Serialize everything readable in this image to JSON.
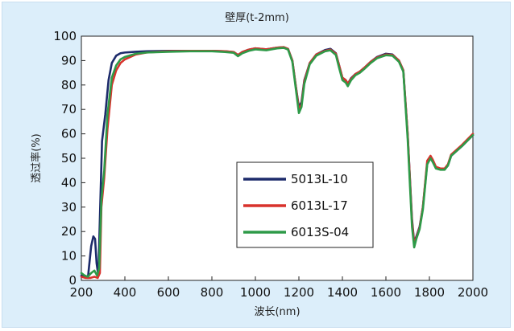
{
  "chart_data": {
    "type": "line",
    "title": "壁厚(t-2mm)",
    "xlabel": "波长(nm)",
    "ylabel": "透过率(%)",
    "xlim": [
      200,
      2000
    ],
    "ylim": [
      0,
      100
    ],
    "xticks": [
      200,
      400,
      600,
      800,
      1000,
      1200,
      1400,
      1600,
      1800,
      2000
    ],
    "yticks": [
      0,
      10,
      20,
      30,
      40,
      50,
      60,
      70,
      80,
      90,
      100
    ],
    "grid": false,
    "legend": "center",
    "series": [
      {
        "name": "5013L-10",
        "color": "#1d2b6b",
        "points": [
          [
            200,
            2
          ],
          [
            215,
            1.5
          ],
          [
            230,
            1
          ],
          [
            245,
            14
          ],
          [
            255,
            18
          ],
          [
            263,
            17
          ],
          [
            270,
            7
          ],
          [
            278,
            2
          ],
          [
            285,
            25
          ],
          [
            295,
            57
          ],
          [
            310,
            68
          ],
          [
            325,
            82
          ],
          [
            340,
            89
          ],
          [
            360,
            92
          ],
          [
            380,
            93
          ],
          [
            400,
            93.3
          ],
          [
            450,
            93.6
          ],
          [
            500,
            93.8
          ],
          [
            600,
            94
          ],
          [
            700,
            94
          ],
          [
            800,
            94
          ],
          [
            860,
            93.8
          ],
          [
            900,
            93.5
          ],
          [
            920,
            92.3
          ],
          [
            940,
            93.5
          ],
          [
            970,
            94.5
          ],
          [
            1000,
            95
          ],
          [
            1050,
            94.6
          ],
          [
            1100,
            95.3
          ],
          [
            1130,
            95.5
          ],
          [
            1150,
            94.8
          ],
          [
            1170,
            90
          ],
          [
            1185,
            80
          ],
          [
            1200,
            71
          ],
          [
            1212,
            73
          ],
          [
            1225,
            82
          ],
          [
            1250,
            89
          ],
          [
            1280,
            92.5
          ],
          [
            1320,
            94.3
          ],
          [
            1345,
            94.8
          ],
          [
            1370,
            93
          ],
          [
            1385,
            88
          ],
          [
            1400,
            83
          ],
          [
            1415,
            82
          ],
          [
            1425,
            80.5
          ],
          [
            1440,
            82.8
          ],
          [
            1460,
            84.5
          ],
          [
            1480,
            85.5
          ],
          [
            1500,
            87
          ],
          [
            1530,
            89.5
          ],
          [
            1560,
            91.5
          ],
          [
            1600,
            92.8
          ],
          [
            1630,
            92.5
          ],
          [
            1660,
            90
          ],
          [
            1680,
            86
          ],
          [
            1700,
            60
          ],
          [
            1720,
            25
          ],
          [
            1730,
            15.5
          ],
          [
            1740,
            18
          ],
          [
            1755,
            22
          ],
          [
            1770,
            30
          ],
          [
            1790,
            48
          ],
          [
            1805,
            50.5
          ],
          [
            1815,
            49
          ],
          [
            1830,
            46
          ],
          [
            1850,
            45.5
          ],
          [
            1870,
            45.5
          ],
          [
            1885,
            47
          ],
          [
            1900,
            51
          ],
          [
            1950,
            55
          ],
          [
            2000,
            59.5
          ]
        ]
      },
      {
        "name": "6013L-17",
        "color": "#d8322c",
        "points": [
          [
            200,
            1.5
          ],
          [
            220,
            1
          ],
          [
            240,
            1
          ],
          [
            260,
            1.5
          ],
          [
            275,
            1
          ],
          [
            285,
            3
          ],
          [
            292,
            30
          ],
          [
            305,
            42
          ],
          [
            320,
            62
          ],
          [
            340,
            80
          ],
          [
            360,
            86
          ],
          [
            380,
            89
          ],
          [
            400,
            90.5
          ],
          [
            450,
            92.5
          ],
          [
            500,
            93.3
          ],
          [
            600,
            93.8
          ],
          [
            700,
            94
          ],
          [
            800,
            94
          ],
          [
            860,
            93.8
          ],
          [
            900,
            93.5
          ],
          [
            920,
            92.3
          ],
          [
            940,
            93.5
          ],
          [
            970,
            94.5
          ],
          [
            1000,
            95
          ],
          [
            1050,
            94.6
          ],
          [
            1100,
            95.3
          ],
          [
            1130,
            95.5
          ],
          [
            1150,
            94.8
          ],
          [
            1170,
            90
          ],
          [
            1185,
            80
          ],
          [
            1200,
            70
          ],
          [
            1212,
            72
          ],
          [
            1225,
            81.5
          ],
          [
            1250,
            89
          ],
          [
            1280,
            92.5
          ],
          [
            1320,
            94
          ],
          [
            1345,
            94.5
          ],
          [
            1370,
            92.8
          ],
          [
            1385,
            88
          ],
          [
            1400,
            83
          ],
          [
            1415,
            82
          ],
          [
            1425,
            80.5
          ],
          [
            1440,
            82.5
          ],
          [
            1460,
            84.5
          ],
          [
            1480,
            85.5
          ],
          [
            1500,
            87
          ],
          [
            1530,
            89.5
          ],
          [
            1560,
            91.3
          ],
          [
            1600,
            92.5
          ],
          [
            1630,
            92.3
          ],
          [
            1660,
            90
          ],
          [
            1680,
            86
          ],
          [
            1700,
            60
          ],
          [
            1720,
            24
          ],
          [
            1730,
            15
          ],
          [
            1740,
            17.5
          ],
          [
            1755,
            21.5
          ],
          [
            1770,
            30
          ],
          [
            1790,
            49
          ],
          [
            1805,
            51
          ],
          [
            1815,
            49.5
          ],
          [
            1830,
            46.5
          ],
          [
            1850,
            45.8
          ],
          [
            1870,
            45.8
          ],
          [
            1885,
            47.5
          ],
          [
            1900,
            51.5
          ],
          [
            1950,
            55.5
          ],
          [
            2000,
            60
          ]
        ]
      },
      {
        "name": "6013S-04",
        "color": "#2e9a48",
        "points": [
          [
            200,
            3
          ],
          [
            215,
            2
          ],
          [
            230,
            1.5
          ],
          [
            245,
            3
          ],
          [
            260,
            4
          ],
          [
            272,
            2
          ],
          [
            282,
            5
          ],
          [
            292,
            33
          ],
          [
            305,
            45
          ],
          [
            320,
            68
          ],
          [
            340,
            83
          ],
          [
            360,
            88
          ],
          [
            380,
            90.5
          ],
          [
            400,
            91.5
          ],
          [
            450,
            92.8
          ],
          [
            500,
            93.3
          ],
          [
            600,
            93.6
          ],
          [
            700,
            93.8
          ],
          [
            800,
            93.8
          ],
          [
            860,
            93.5
          ],
          [
            900,
            93.2
          ],
          [
            920,
            91.8
          ],
          [
            940,
            93
          ],
          [
            970,
            94
          ],
          [
            1000,
            94.6
          ],
          [
            1050,
            94.2
          ],
          [
            1100,
            95
          ],
          [
            1130,
            95.2
          ],
          [
            1150,
            94.5
          ],
          [
            1170,
            89.5
          ],
          [
            1185,
            79
          ],
          [
            1200,
            68.5
          ],
          [
            1212,
            71
          ],
          [
            1225,
            80.5
          ],
          [
            1250,
            88.5
          ],
          [
            1280,
            92
          ],
          [
            1320,
            93.8
          ],
          [
            1345,
            94.2
          ],
          [
            1370,
            92.3
          ],
          [
            1385,
            87
          ],
          [
            1400,
            82
          ],
          [
            1415,
            81
          ],
          [
            1425,
            79.5
          ],
          [
            1440,
            82
          ],
          [
            1460,
            84
          ],
          [
            1480,
            85
          ],
          [
            1500,
            86.5
          ],
          [
            1530,
            89
          ],
          [
            1560,
            91
          ],
          [
            1600,
            92.2
          ],
          [
            1630,
            92
          ],
          [
            1660,
            89.5
          ],
          [
            1680,
            85.5
          ],
          [
            1700,
            58
          ],
          [
            1720,
            22
          ],
          [
            1730,
            13.5
          ],
          [
            1740,
            17
          ],
          [
            1755,
            21
          ],
          [
            1770,
            29
          ],
          [
            1790,
            47.5
          ],
          [
            1805,
            50
          ],
          [
            1815,
            48.5
          ],
          [
            1830,
            45.8
          ],
          [
            1850,
            45.3
          ],
          [
            1870,
            45.3
          ],
          [
            1885,
            47
          ],
          [
            1900,
            51
          ],
          [
            1950,
            55
          ],
          [
            2000,
            59.5
          ]
        ]
      }
    ]
  }
}
